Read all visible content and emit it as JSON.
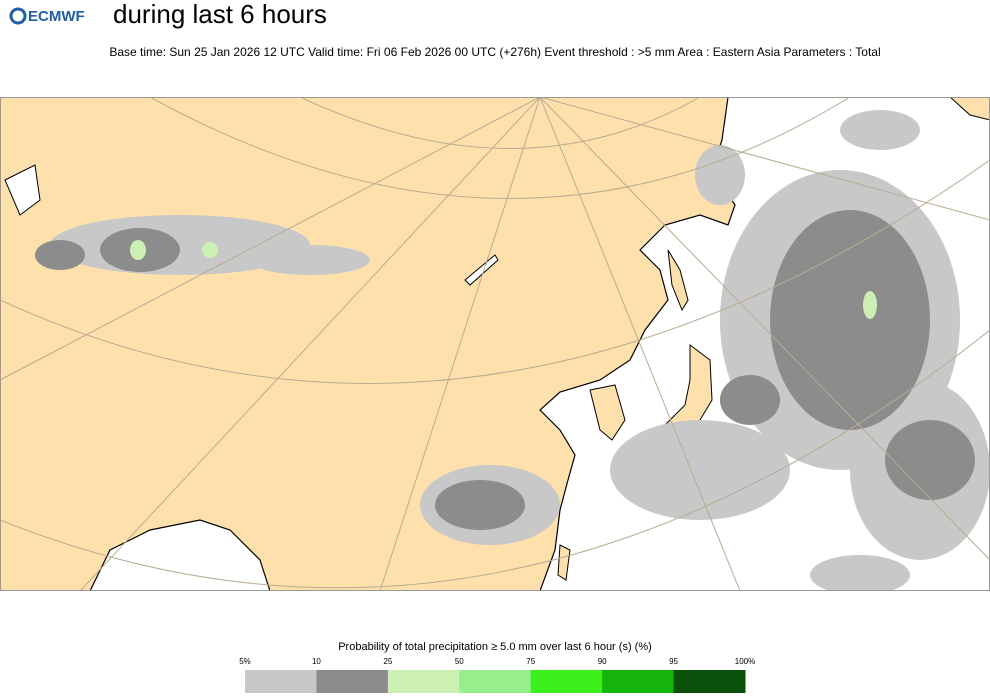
{
  "header": {
    "logo": "ECMWF",
    "title": "during last 6 hours",
    "subtitle": "Base time: Sun 25 Jan 2026 12 UTC Valid time: Fri 06 Feb 2026 00 UTC (+276h) Event threshold : >5 mm Area : Eastern Asia Parameters : Total"
  },
  "legend": {
    "title": "Probability of total precipitation ≥ 5.0 mm over last 6 hour (s) (%)",
    "ticks": [
      "5%",
      "10",
      "25",
      "50",
      "75",
      "90",
      "95",
      "100%"
    ],
    "colors": [
      "#c8c8c8",
      "#8c8c8c",
      "#ccf0b4",
      "#96ee8c",
      "#3cf01e",
      "#14b40a",
      "#0a500a"
    ]
  }
}
